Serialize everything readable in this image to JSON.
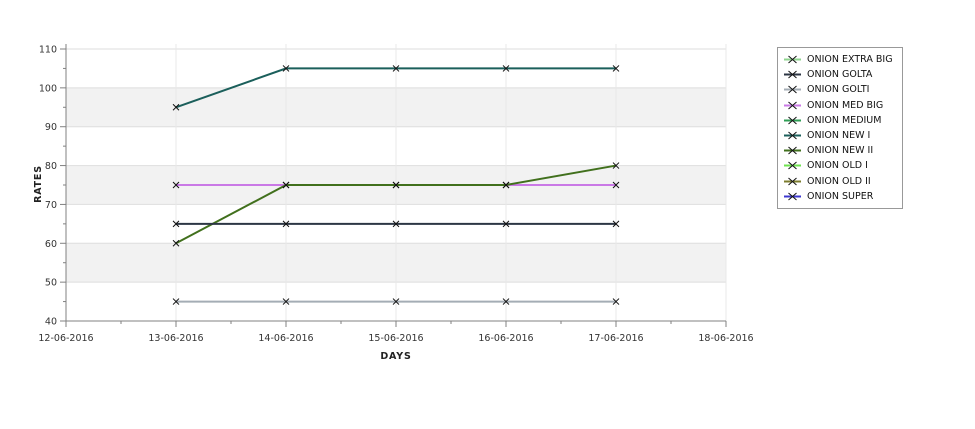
{
  "chart_data": {
    "type": "line",
    "title": "",
    "xlabel": "DAYS",
    "ylabel": "RATES",
    "x_categories": [
      "12-06-2016",
      "13-06-2016",
      "14-06-2016",
      "15-06-2016",
      "16-06-2016",
      "17-06-2016",
      "18-06-2016"
    ],
    "ylim": [
      40,
      110
    ],
    "ytick_step": 10,
    "ytick_labels": [
      "40",
      "50",
      "60",
      "70",
      "80",
      "90",
      "100",
      "110"
    ],
    "grid": true,
    "band_color": "#f2f2f2",
    "hgrid_color": "#dedede",
    "vgrid_color": "#e8e8e8",
    "axis_color": "#808080",
    "tick_text_color": "#333333",
    "marker": "x",
    "marker_color": "#111111",
    "legend_position": "right",
    "series_x": [
      "13-06-2016",
      "14-06-2016",
      "15-06-2016",
      "16-06-2016",
      "17-06-2016"
    ],
    "series": [
      {
        "name": "ONION MED BIG",
        "color": "#ca79e6",
        "values": [
          75,
          75,
          75,
          75,
          75
        ]
      },
      {
        "name": "ONION NEW II",
        "color": "#41701d",
        "values": [
          60,
          75,
          75,
          75,
          80
        ]
      },
      {
        "name": "ONION GOLTA",
        "color": "#2c3644",
        "values": [
          65,
          65,
          65,
          65,
          65
        ]
      },
      {
        "name": "ONION NEW I",
        "color": "#1b5f5b",
        "values": [
          95,
          105,
          105,
          105,
          105
        ]
      },
      {
        "name": "ONION GOLTI",
        "color": "#a4adb5",
        "values": [
          45,
          45,
          45,
          45,
          45
        ]
      }
    ],
    "legend": [
      {
        "label": "ONION EXTRA BIG",
        "color": "#8fd48f"
      },
      {
        "label": "ONION GOLTA",
        "color": "#2c3644"
      },
      {
        "label": "ONION GOLTI",
        "color": "#a4adb5"
      },
      {
        "label": "ONION MED BIG",
        "color": "#ca79e6"
      },
      {
        "label": "ONION MEDIUM",
        "color": "#2f9e55"
      },
      {
        "label": "ONION NEW I",
        "color": "#1b5f5b"
      },
      {
        "label": "ONION NEW II",
        "color": "#41701d"
      },
      {
        "label": "ONION OLD I",
        "color": "#6fe34f"
      },
      {
        "label": "ONION OLD II",
        "color": "#7c7c2e"
      },
      {
        "label": "ONION SUPER",
        "color": "#3d38cf"
      }
    ]
  }
}
